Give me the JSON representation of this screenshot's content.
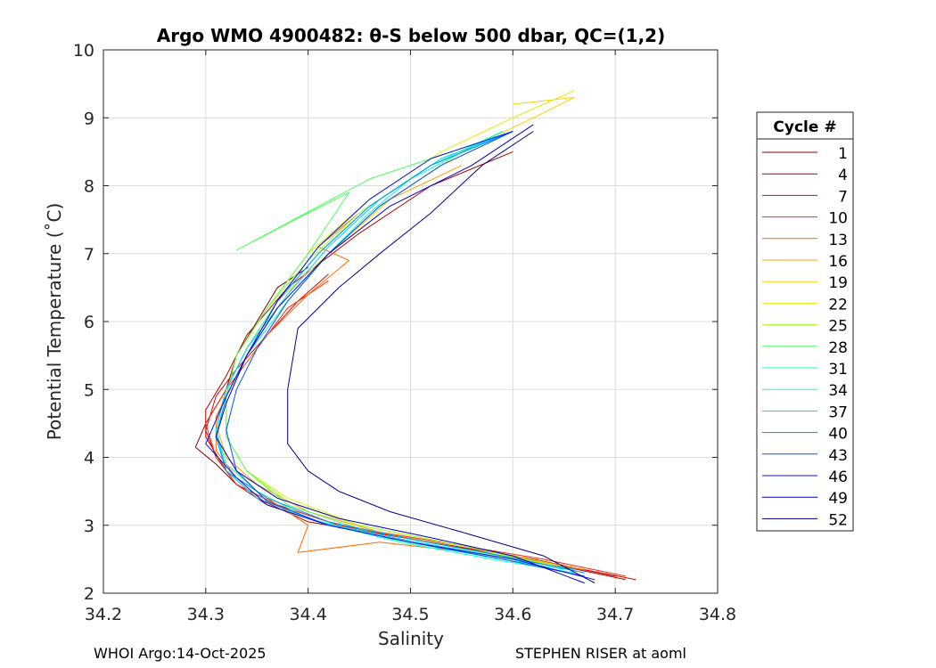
{
  "chart_data": {
    "type": "line",
    "title": "Argo WMO 4900482: θ-S below 500 dbar,  QC=(1,2)",
    "xlabel": "Salinity",
    "ylabel": "Potential Temperature (˚C)",
    "xlim": [
      34.2,
      34.8
    ],
    "ylim": [
      2,
      10
    ],
    "xticks": [
      34.2,
      34.3,
      34.4,
      34.5,
      34.6,
      34.7,
      34.8
    ],
    "xtick_labels": [
      "34.2",
      "34.3",
      "34.4",
      "34.5",
      "34.6",
      "34.7",
      "34.8"
    ],
    "yticks": [
      2,
      3,
      4,
      5,
      6,
      7,
      8,
      9,
      10
    ],
    "ytick_labels": [
      "2",
      "3",
      "4",
      "5",
      "6",
      "7",
      "8",
      "9",
      "10"
    ],
    "grid": true,
    "legend": {
      "title": "Cycle #",
      "placement": "outside-right",
      "entries": [
        "1",
        "4",
        "7",
        "10",
        "13",
        "16",
        "19",
        "22",
        "25",
        "28",
        "31",
        "34",
        "37",
        "40",
        "43",
        "46",
        "49",
        "52"
      ],
      "colors": [
        "#800000",
        "#b00000",
        "#e00000",
        "#ff2a00",
        "#ff6a00",
        "#ffa000",
        "#ffd000",
        "#e0f000",
        "#a0ff20",
        "#50ff60",
        "#20ffa0",
        "#00ffe0",
        "#00d0ff",
        "#0090ff",
        "#0050ff",
        "#0010f0",
        "#0000c0",
        "#000090"
      ]
    },
    "series": [
      {
        "name": "1",
        "color": "#800000",
        "x": [
          34.4,
          34.37,
          34.35,
          34.33,
          34.32,
          34.3,
          34.29,
          34.31,
          34.33,
          34.37,
          34.43,
          34.52,
          34.62,
          34.7
        ],
        "y": [
          6.8,
          6.5,
          6.0,
          5.5,
          5.0,
          4.5,
          4.15,
          3.9,
          3.6,
          3.3,
          3.0,
          2.75,
          2.5,
          2.25
        ]
      },
      {
        "name": "4",
        "color": "#b00000",
        "x": [
          34.6,
          34.52,
          34.45,
          34.38,
          34.34,
          34.32,
          34.3,
          34.3,
          34.32,
          34.35,
          34.4,
          34.5,
          34.6,
          34.71
        ],
        "y": [
          8.5,
          8.0,
          7.3,
          6.5,
          5.8,
          5.2,
          4.7,
          4.3,
          3.8,
          3.4,
          3.05,
          2.8,
          2.55,
          2.2
        ]
      },
      {
        "name": "7",
        "color": "#e00000",
        "x": [
          34.42,
          34.39,
          34.36,
          34.33,
          34.31,
          34.3,
          34.31,
          34.33,
          34.36,
          34.42,
          34.5,
          34.6,
          34.72
        ],
        "y": [
          6.7,
          6.3,
          5.8,
          5.3,
          4.9,
          4.4,
          4.0,
          3.6,
          3.3,
          3.0,
          2.8,
          2.55,
          2.2
        ]
      },
      {
        "name": "10",
        "color": "#ff2a00",
        "x": [
          34.42,
          34.38,
          34.35,
          34.32,
          34.3,
          34.31,
          34.33,
          34.37,
          34.43,
          34.53,
          34.63,
          34.71
        ],
        "y": [
          6.6,
          6.2,
          5.6,
          5.0,
          4.5,
          4.0,
          3.6,
          3.3,
          3.0,
          2.75,
          2.5,
          2.25
        ]
      },
      {
        "name": "13",
        "color": "#ff6a00",
        "x": [
          34.45,
          34.41,
          34.44,
          34.4,
          34.36,
          34.33,
          34.31,
          34.31,
          34.33,
          34.37,
          34.4,
          34.39,
          34.47,
          34.56,
          34.66
        ],
        "y": [
          7.6,
          7.1,
          6.9,
          6.4,
          5.8,
          5.2,
          4.6,
          4.1,
          3.7,
          3.3,
          3.0,
          2.6,
          2.75,
          2.6,
          2.35
        ]
      },
      {
        "name": "16",
        "color": "#ffa000",
        "x": [
          34.55,
          34.48,
          34.42,
          34.37,
          34.34,
          34.32,
          34.31,
          34.32,
          34.35,
          34.4,
          34.47,
          34.57,
          34.67
        ],
        "y": [
          8.3,
          7.8,
          7.0,
          6.3,
          5.6,
          5.0,
          4.5,
          4.0,
          3.6,
          3.2,
          2.9,
          2.6,
          2.35
        ]
      },
      {
        "name": "19",
        "color": "#ffd000",
        "x": [
          34.6,
          34.66,
          34.62,
          34.55,
          34.48,
          34.42,
          34.37,
          34.34,
          34.32,
          34.31,
          34.32,
          34.35,
          34.4,
          34.48,
          34.58,
          34.66
        ],
        "y": [
          9.2,
          9.3,
          9.0,
          8.5,
          7.8,
          7.0,
          6.3,
          5.6,
          5.0,
          4.4,
          3.9,
          3.5,
          3.1,
          2.8,
          2.55,
          2.35
        ]
      },
      {
        "name": "22",
        "color": "#e0f000",
        "x": [
          34.66,
          34.6,
          34.53,
          34.46,
          34.4,
          34.36,
          34.33,
          34.32,
          34.32,
          34.34,
          34.38,
          34.45,
          34.55,
          34.65
        ],
        "y": [
          9.4,
          9.0,
          8.5,
          7.8,
          7.0,
          6.2,
          5.5,
          4.9,
          4.3,
          3.8,
          3.4,
          3.0,
          2.7,
          2.4
        ]
      },
      {
        "name": "25",
        "color": "#a0ff20",
        "x": [
          34.6,
          34.52,
          34.45,
          34.4,
          34.36,
          34.33,
          34.32,
          34.32,
          34.34,
          34.38,
          34.45,
          34.55,
          34.64
        ],
        "y": [
          8.8,
          8.3,
          7.6,
          6.9,
          6.2,
          5.5,
          4.9,
          4.3,
          3.8,
          3.35,
          3.0,
          2.7,
          2.4
        ]
      },
      {
        "name": "28",
        "color": "#50ff60",
        "x": [
          34.58,
          34.5,
          34.46,
          34.33,
          34.4,
          34.44,
          34.4,
          34.36,
          34.33,
          34.32,
          34.32,
          34.34,
          34.38,
          34.45,
          34.55,
          34.64
        ],
        "y": [
          8.7,
          8.3,
          8.1,
          7.05,
          7.6,
          7.9,
          7.0,
          6.2,
          5.5,
          4.9,
          4.3,
          3.8,
          3.3,
          2.95,
          2.65,
          2.4
        ]
      },
      {
        "name": "31",
        "color": "#20ffa0",
        "x": [
          34.59,
          34.52,
          34.46,
          34.41,
          34.37,
          34.34,
          34.32,
          34.31,
          34.32,
          34.35,
          34.4,
          34.48,
          34.57,
          34.65
        ],
        "y": [
          8.8,
          8.3,
          7.7,
          7.0,
          6.3,
          5.6,
          5.0,
          4.4,
          3.9,
          3.5,
          3.1,
          2.8,
          2.55,
          2.35
        ]
      },
      {
        "name": "34",
        "color": "#00ffe0",
        "x": [
          34.59,
          34.5,
          34.46,
          34.42,
          34.38,
          34.34,
          34.32,
          34.31,
          34.32,
          34.35,
          34.41,
          34.49,
          34.58,
          34.66
        ],
        "y": [
          8.8,
          8.1,
          7.6,
          7.0,
          6.3,
          5.5,
          4.9,
          4.3,
          3.8,
          3.4,
          3.05,
          2.75,
          2.5,
          2.3
        ]
      },
      {
        "name": "37",
        "color": "#00d0ff",
        "x": [
          34.6,
          34.53,
          34.47,
          34.42,
          34.38,
          34.34,
          34.32,
          34.31,
          34.32,
          34.35,
          34.41,
          34.49,
          34.58,
          34.66
        ],
        "y": [
          8.8,
          8.4,
          7.8,
          7.1,
          6.4,
          5.6,
          5.0,
          4.4,
          3.8,
          3.4,
          3.05,
          2.8,
          2.55,
          2.35
        ]
      },
      {
        "name": "40",
        "color": "#0090ff",
        "x": [
          34.6,
          34.52,
          34.46,
          34.41,
          34.37,
          34.34,
          34.32,
          34.31,
          34.32,
          34.36,
          34.42,
          34.5,
          34.59,
          34.67
        ],
        "y": [
          8.8,
          8.3,
          7.7,
          7.0,
          6.3,
          5.5,
          4.9,
          4.3,
          3.8,
          3.4,
          3.05,
          2.8,
          2.55,
          2.3
        ]
      },
      {
        "name": "43",
        "color": "#0050ff",
        "x": [
          34.6,
          34.53,
          34.47,
          34.42,
          34.38,
          34.35,
          34.33,
          34.32,
          34.33,
          34.36,
          34.42,
          34.5,
          34.59,
          34.67
        ],
        "y": [
          8.8,
          8.3,
          7.7,
          7.0,
          6.3,
          5.6,
          5.0,
          4.4,
          3.8,
          3.35,
          3.0,
          2.75,
          2.5,
          2.25
        ]
      },
      {
        "name": "46",
        "color": "#0010f0",
        "x": [
          34.6,
          34.52,
          34.46,
          34.41,
          34.37,
          34.34,
          34.32,
          34.3,
          34.33,
          34.36,
          34.42,
          34.5,
          34.6,
          34.68
        ],
        "y": [
          8.8,
          8.4,
          7.8,
          7.1,
          6.3,
          5.5,
          4.9,
          4.2,
          3.7,
          3.3,
          3.0,
          2.75,
          2.5,
          2.2
        ]
      },
      {
        "name": "49",
        "color": "#0000c0",
        "x": [
          34.62,
          34.56,
          34.48,
          34.42,
          34.37,
          34.34,
          34.32,
          34.31,
          34.33,
          34.37,
          34.43,
          34.51,
          34.6,
          34.67
        ],
        "y": [
          8.9,
          8.3,
          7.7,
          7.0,
          6.2,
          5.5,
          4.8,
          4.3,
          3.8,
          3.4,
          3.1,
          2.85,
          2.55,
          2.15
        ]
      },
      {
        "name": "52",
        "color": "#000090",
        "x": [
          34.62,
          34.57,
          34.52,
          34.47,
          34.43,
          34.39,
          34.38,
          34.38,
          34.4,
          34.43,
          34.48,
          34.55,
          34.63,
          34.68
        ],
        "y": [
          8.8,
          8.3,
          7.6,
          7.0,
          6.5,
          5.9,
          5.0,
          4.2,
          3.8,
          3.5,
          3.2,
          2.9,
          2.55,
          2.15
        ]
      }
    ]
  },
  "footer": {
    "left": "WHOI Argo:14-Oct-2025",
    "right": "STEPHEN RISER at aoml"
  }
}
